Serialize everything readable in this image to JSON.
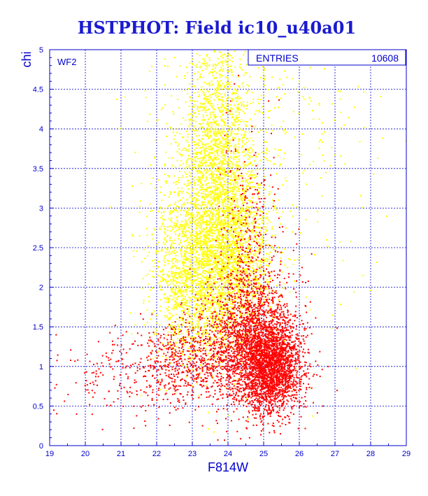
{
  "chart_data": {
    "type": "scatter",
    "title": "HSTPHOT: Field ic10_u40a01",
    "xlabel": "F814W",
    "ylabel": "chi",
    "xlim": [
      19,
      29
    ],
    "ylim": [
      0,
      5
    ],
    "x_ticks": [
      "19",
      "20",
      "21",
      "22",
      "23",
      "24",
      "25",
      "26",
      "27",
      "28",
      "29"
    ],
    "y_ticks": [
      "0",
      "0.5",
      "1",
      "1.5",
      "2",
      "2.5",
      "3",
      "3.5",
      "4",
      "4.5",
      "5"
    ],
    "grid": true,
    "panel_label": "WF2",
    "stats_box": {
      "label": "ENTRIES",
      "value": "10608"
    },
    "colors": {
      "frame": "#0000cc",
      "grid": "#0000cc",
      "title": "#1a1ad0",
      "red": "#ff0000",
      "yellow": "#ffff00"
    },
    "series": [
      {
        "color": "yellow",
        "groups": [
          {
            "center": [
              23.7,
              3.3
            ],
            "spread": [
              0.55,
              0.95
            ],
            "count": 2600
          },
          {
            "center": [
              23.0,
              2.2
            ],
            "spread": [
              0.6,
              0.55
            ],
            "count": 1500
          },
          {
            "center": [
              24.3,
              2.3
            ],
            "spread": [
              0.5,
              0.5
            ],
            "count": 1000
          },
          {
            "center": [
              24.5,
              4.2
            ],
            "spread": [
              1.6,
              0.5
            ],
            "count": 220
          },
          {
            "center": [
              25.0,
              2.8
            ],
            "spread": [
              1.7,
              1.1
            ],
            "count": 180
          }
        ]
      },
      {
        "color": "red",
        "groups": [
          {
            "center": [
              25.15,
              1.0
            ],
            "spread": [
              0.45,
              0.28
            ],
            "count": 2200
          },
          {
            "center": [
              24.6,
              1.4
            ],
            "spread": [
              0.65,
              0.45
            ],
            "count": 1500
          },
          {
            "center": [
              23.0,
              1.05
            ],
            "spread": [
              0.95,
              0.28
            ],
            "count": 800
          },
          {
            "center": [
              24.6,
              2.6
            ],
            "spread": [
              0.45,
              0.75
            ],
            "count": 300
          },
          {
            "center": [
              20.8,
              0.8
            ],
            "spread": [
              0.8,
              0.3
            ],
            "count": 120
          }
        ]
      }
    ]
  }
}
